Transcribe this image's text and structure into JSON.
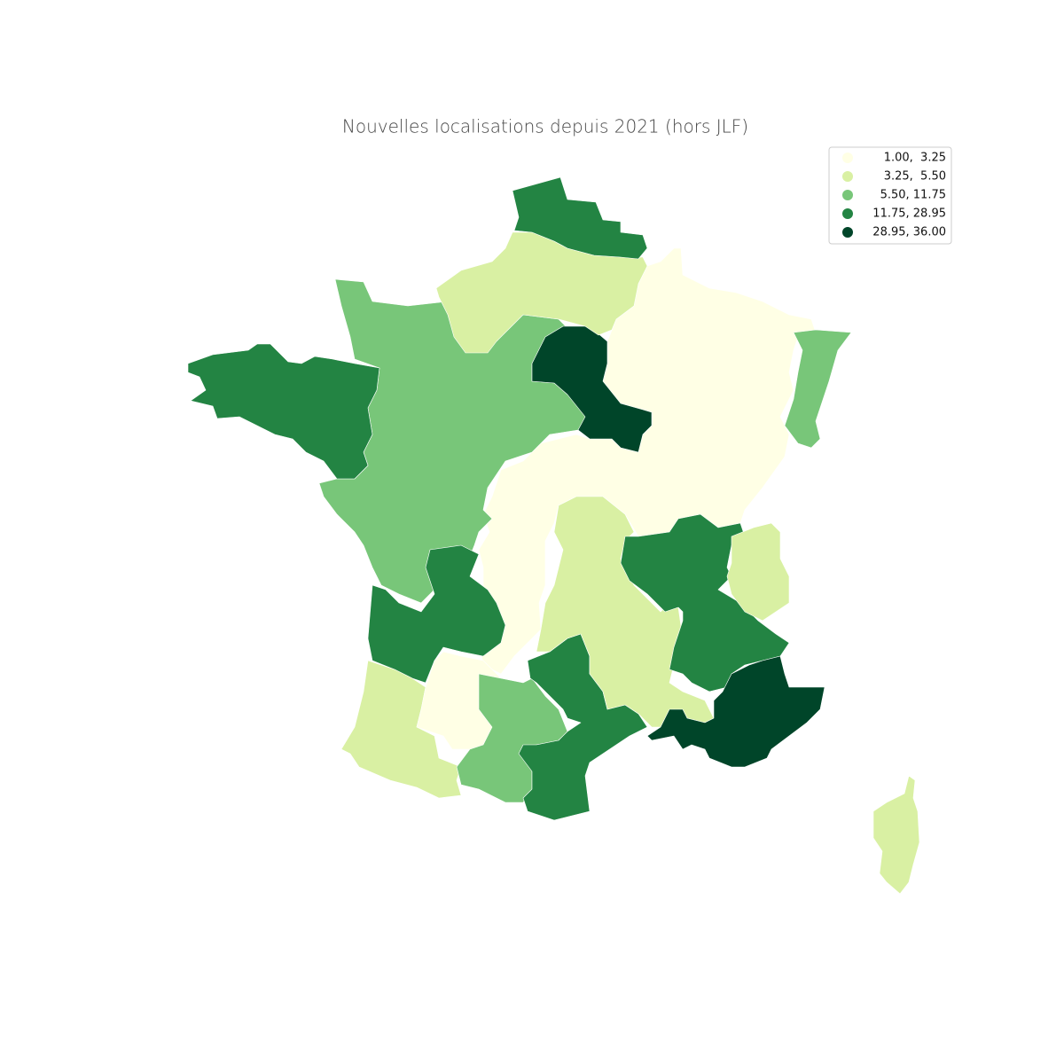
{
  "title": "Nouvelles localisations depuis 2021 (hors JLF)",
  "legend": [
    {
      "label": "1.00,  3.25",
      "color": "#ffffe5"
    },
    {
      "label": "3.25,  5.50",
      "color": "#d9f0a3"
    },
    {
      "label": "5.50, 11.75",
      "color": "#78c679"
    },
    {
      "label": "11.75, 28.95",
      "color": "#238443"
    },
    {
      "label": "28.95, 36.00",
      "color": "#004529"
    }
  ]
}
